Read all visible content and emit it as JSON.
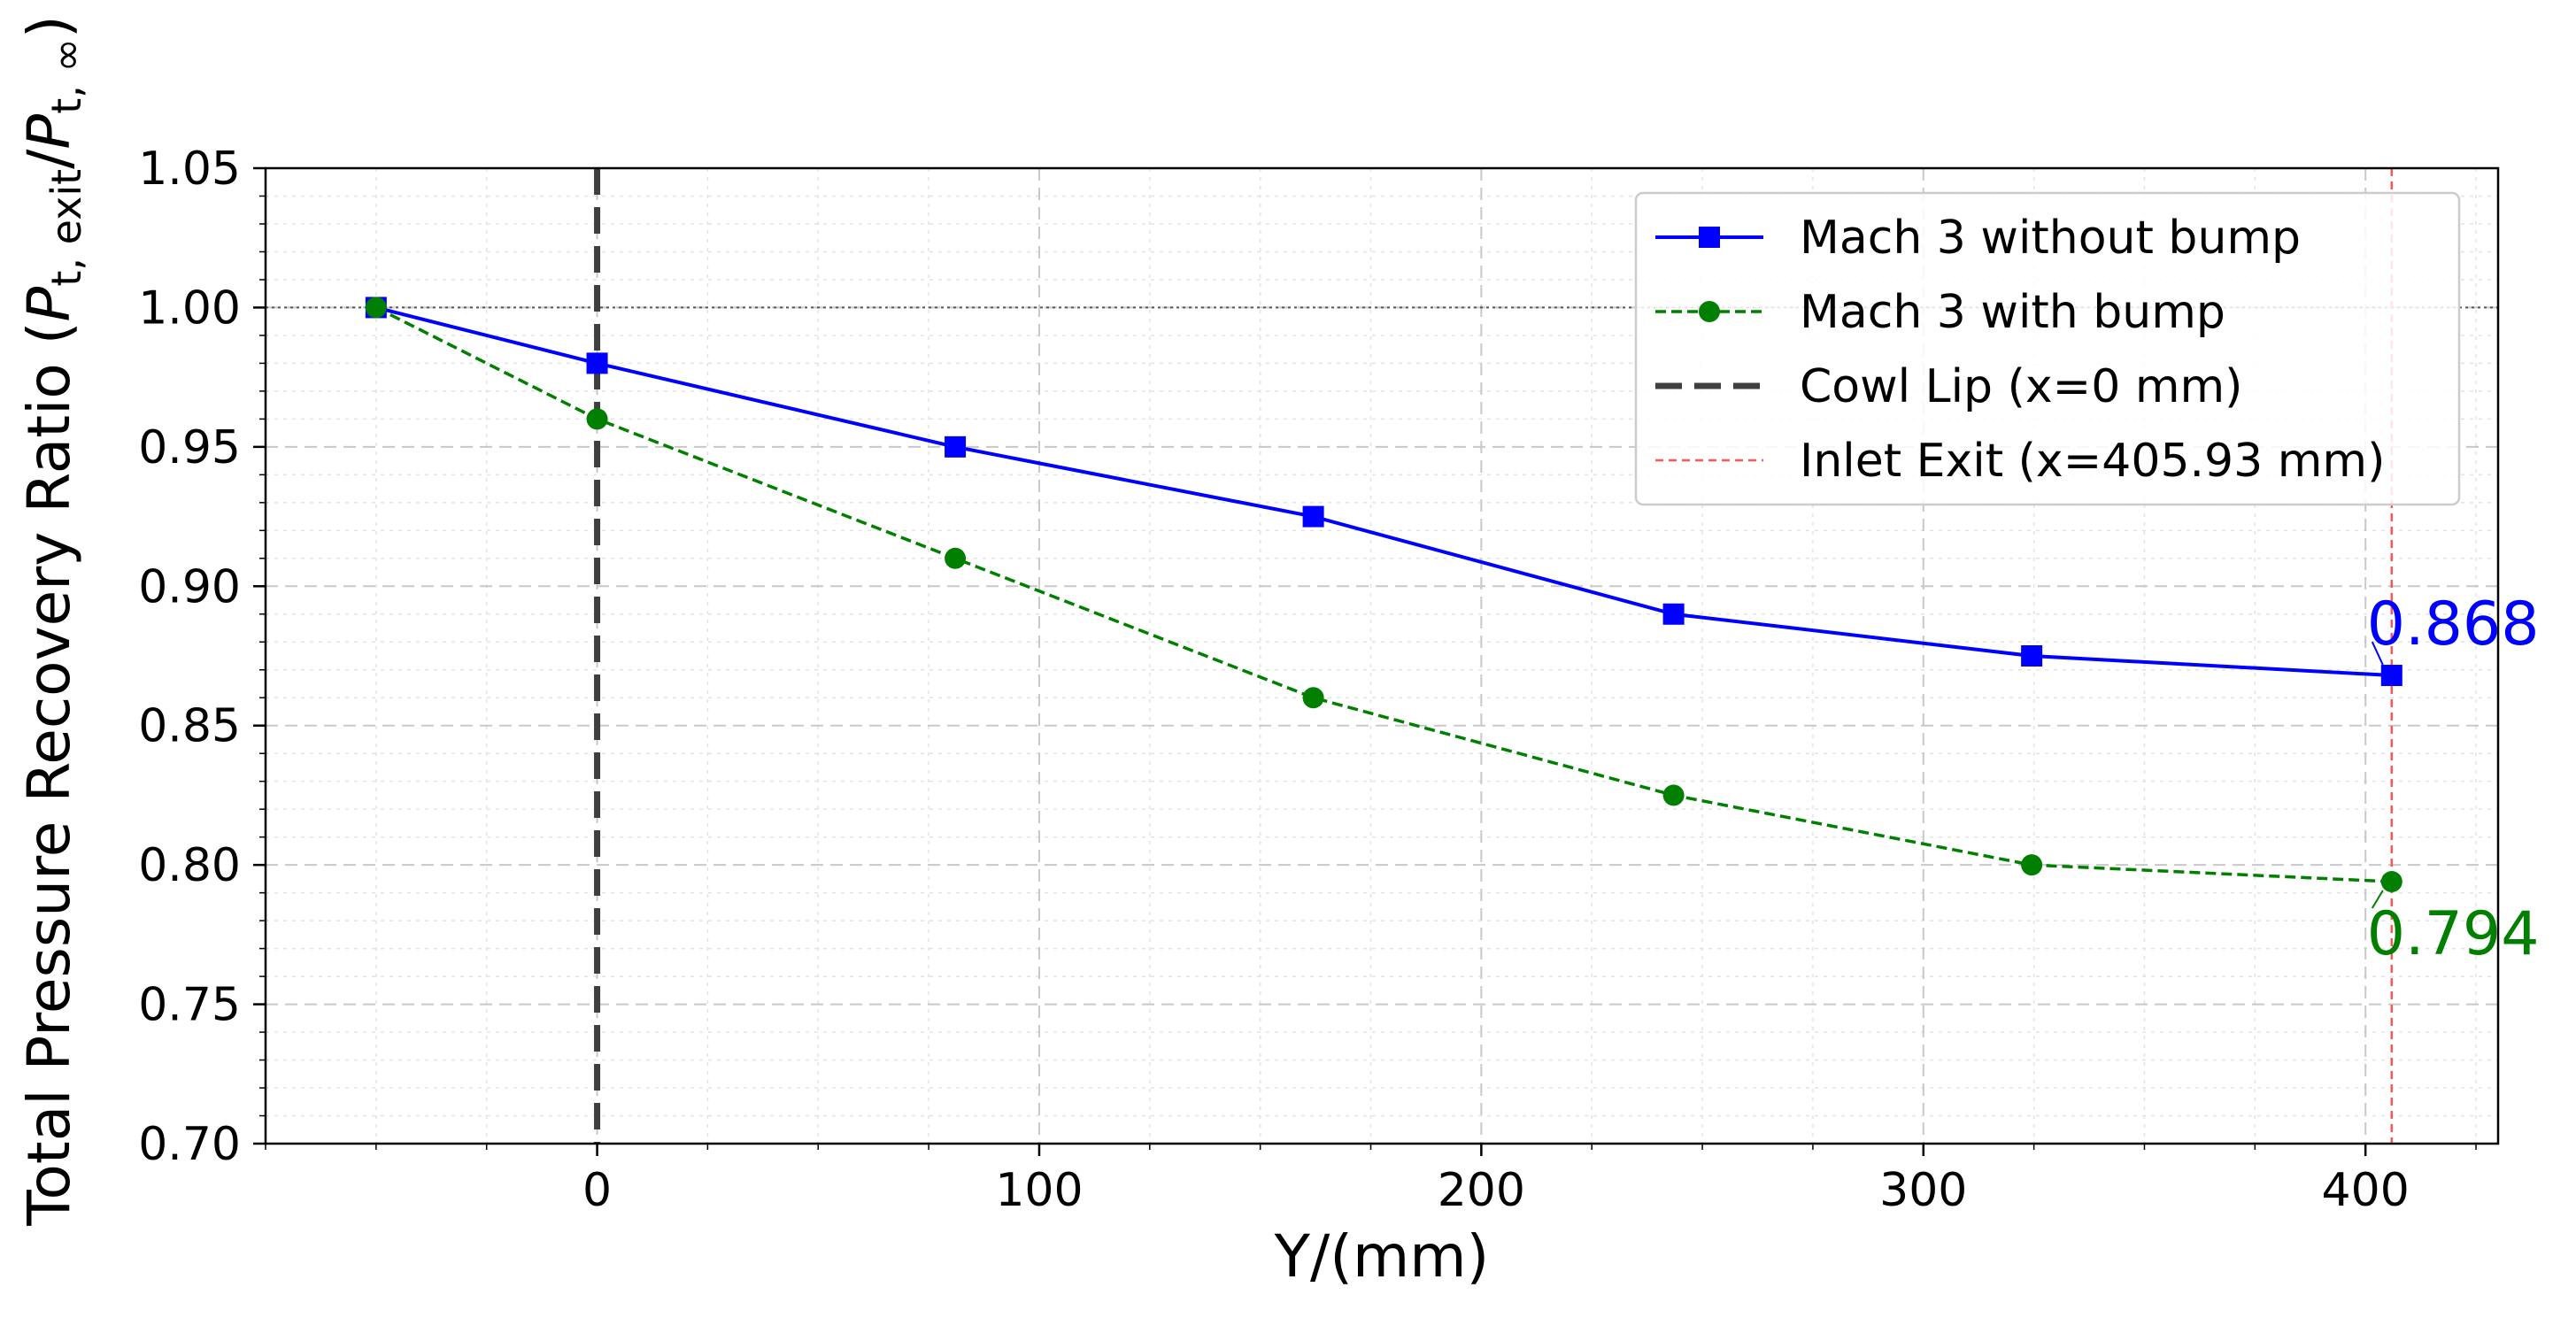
{
  "chart_data": {
    "type": "line",
    "title": "",
    "xlabel": "Y/(mm)",
    "ylabel": {
      "main": "Total Pressure Recovery Ratio (",
      "num_base": "P",
      "num_sub": "t, exit",
      "slash": "/",
      "den_base": "P",
      "den_sub": "t, ∞",
      "close": ")"
    },
    "xlim": [
      -75,
      430
    ],
    "ylim": [
      0.7,
      1.05
    ],
    "xticks": [
      0,
      100,
      200,
      300,
      400
    ],
    "xtick_labels": [
      "0",
      "100",
      "200",
      "300",
      "400"
    ],
    "yticks": [
      0.7,
      0.75,
      0.8,
      0.85,
      0.9,
      0.95,
      1.0,
      1.05
    ],
    "ytick_labels": [
      "0.70",
      "0.75",
      "0.80",
      "0.85",
      "0.90",
      "0.95",
      "1.00",
      "1.05"
    ],
    "grid": true,
    "legend_position": "top-right",
    "reference_line_y": 1.0,
    "series": [
      {
        "name": "Mach 3 without bump",
        "color": "#0000ff",
        "style": "solid",
        "marker": "square",
        "x": [
          -50,
          0,
          81,
          162,
          243.5,
          324.5,
          405.93
        ],
        "y": [
          1.0,
          0.98,
          0.95,
          0.925,
          0.89,
          0.875,
          0.868
        ]
      },
      {
        "name": "Mach 3 with bump",
        "color": "#007f00",
        "style": "dashed",
        "marker": "circle",
        "x": [
          -50,
          0,
          81,
          162,
          243.5,
          324.5,
          405.93
        ],
        "y": [
          1.0,
          0.96,
          0.91,
          0.86,
          0.825,
          0.8,
          0.794
        ]
      }
    ],
    "vlines": [
      {
        "name": "Cowl Lip (x=0 mm)",
        "x": 0,
        "color": "#3f3f3f",
        "style": "thick-dashed"
      },
      {
        "name": "Inlet Exit (x=405.93 mm)",
        "x": 405.93,
        "color": "#ff5555",
        "style": "thin-dashed"
      }
    ],
    "annotations": [
      {
        "text": "0.868",
        "series": 0,
        "point_x": 405.93,
        "point_y": 0.868,
        "color": "#0000ff"
      },
      {
        "text": "0.794",
        "series": 1,
        "point_x": 405.93,
        "point_y": 0.794,
        "color": "#007f00"
      }
    ]
  }
}
